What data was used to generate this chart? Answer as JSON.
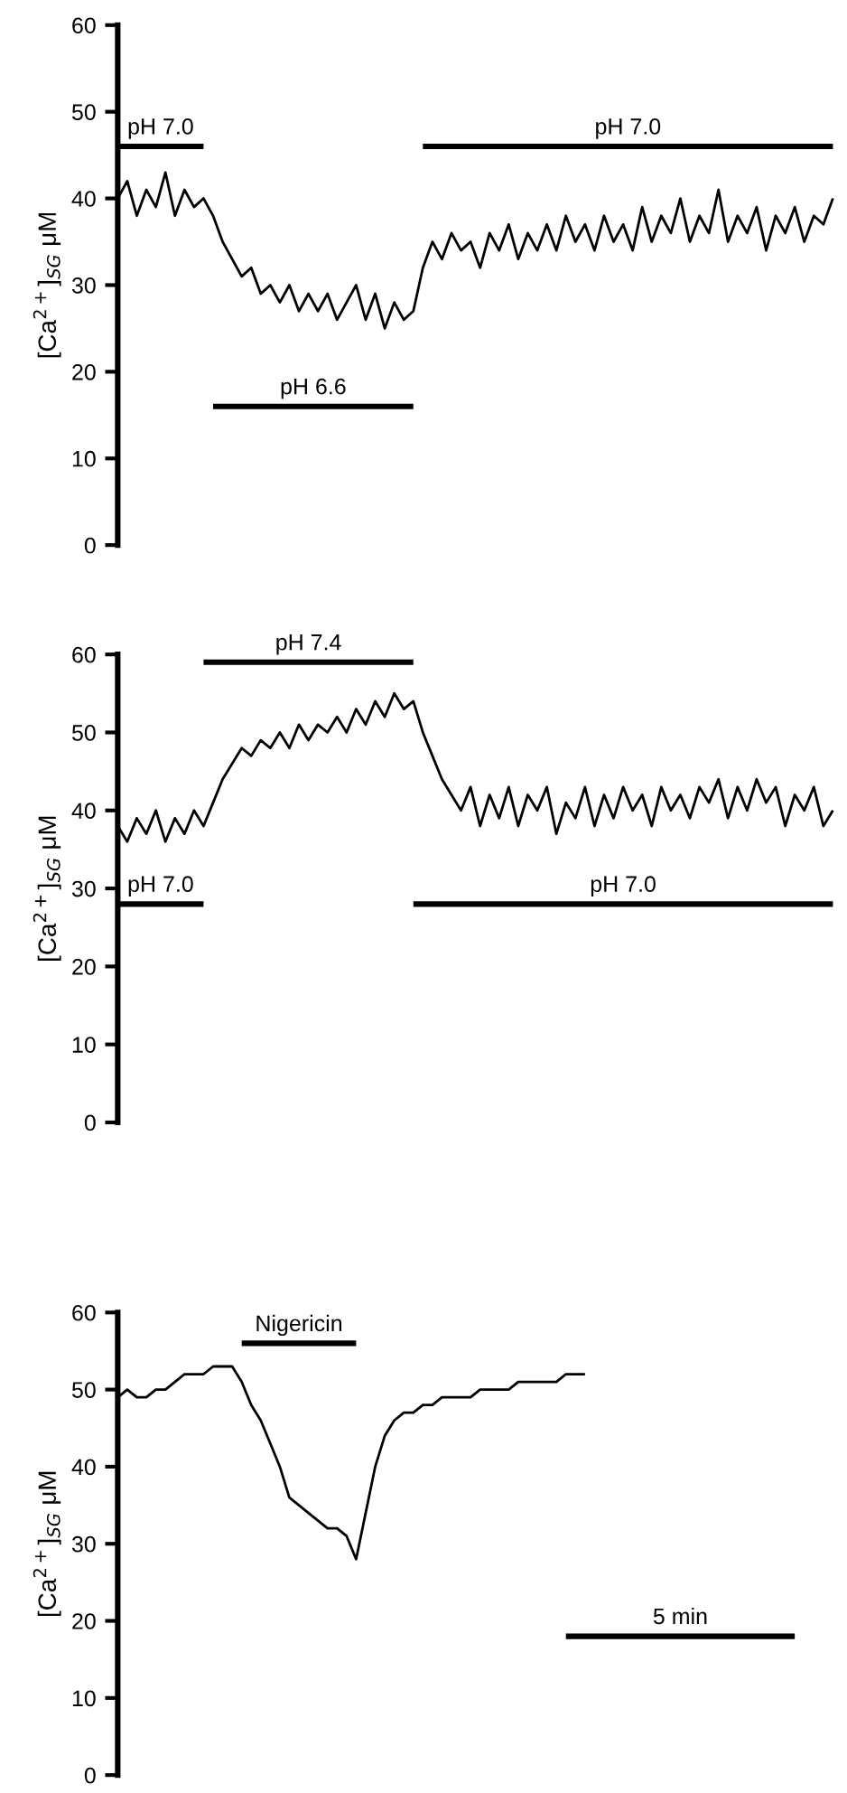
{
  "chart_data": [
    {
      "type": "line",
      "ylabel": "[Ca$^{2+}$]$_{SG}$ μM",
      "ylim": [
        0,
        60
      ],
      "yticks": [
        0,
        10,
        20,
        30,
        40,
        50,
        60
      ],
      "tick_labels": "y",
      "grid": false,
      "categories": [
        null,
        null,
        null,
        null,
        null,
        null,
        null,
        null,
        null,
        null,
        null,
        null,
        null,
        null,
        null,
        null,
        null,
        null,
        null,
        null,
        null,
        null,
        null,
        null,
        null,
        null,
        null,
        null,
        null,
        null,
        null,
        null,
        null,
        null,
        null,
        null,
        null,
        null,
        null,
        null,
        null,
        null,
        null,
        null,
        null,
        null,
        null,
        null,
        null,
        null,
        null,
        null,
        null,
        null,
        null,
        null,
        null,
        null,
        null,
        null,
        null,
        null,
        null,
        null,
        null,
        null,
        null,
        null,
        null,
        null,
        null,
        null,
        null,
        null,
        null,
        null
      ],
      "series": [
        {
          "color": "#000000",
          "values": [
            40,
            42,
            38,
            41,
            39,
            43,
            38,
            41,
            39,
            40,
            38,
            35,
            33,
            31,
            32,
            29,
            30,
            28,
            30,
            27,
            29,
            27,
            29,
            26,
            28,
            30,
            26,
            29,
            25,
            28,
            26,
            27,
            32,
            35,
            33,
            36,
            34,
            35,
            32,
            36,
            34,
            37,
            33,
            36,
            34,
            37,
            34,
            38,
            35,
            37,
            34,
            38,
            35,
            37,
            34,
            39,
            35,
            38,
            36,
            40,
            35,
            38,
            36,
            41,
            35,
            38,
            36,
            39,
            34,
            38,
            36,
            39,
            35,
            38,
            37,
            40
          ]
        },
        {
          "color": "#000000",
          "values": [
            46,
            46,
            46,
            46,
            46,
            46,
            46,
            46,
            46,
            46,
            null,
            null,
            null,
            null,
            null,
            null,
            null,
            null,
            null,
            null,
            null,
            null,
            null,
            null,
            null,
            null,
            null,
            null,
            null,
            null,
            null,
            null,
            null,
            null,
            null,
            null,
            null,
            null,
            null,
            null,
            null,
            null,
            null,
            null,
            null,
            null,
            null,
            null,
            null,
            null,
            null,
            null,
            null,
            null,
            null,
            null,
            null,
            null,
            null,
            null,
            null,
            null,
            null,
            null,
            null,
            null,
            null,
            null,
            null,
            null,
            null,
            null,
            null,
            null,
            null,
            null
          ]
        },
        {
          "color": "#000000",
          "values": [
            null,
            null,
            null,
            null,
            null,
            null,
            null,
            null,
            null,
            null,
            16,
            16,
            16,
            16,
            16,
            16,
            16,
            16,
            16,
            16,
            16,
            16,
            16,
            16,
            16,
            16,
            16,
            16,
            16,
            16,
            16,
            16,
            null,
            null,
            null,
            null,
            null,
            null,
            null,
            null,
            null,
            null,
            null,
            null,
            null,
            null,
            null,
            null,
            null,
            null,
            null,
            null,
            null,
            null,
            null,
            null,
            null,
            null,
            null,
            null,
            null,
            null,
            null,
            null,
            null,
            null,
            null,
            null,
            null,
            null,
            null,
            null,
            null,
            null,
            null,
            null
          ]
        },
        {
          "color": "#000000",
          "values": [
            null,
            null,
            null,
            null,
            null,
            null,
            null,
            null,
            null,
            null,
            null,
            null,
            null,
            null,
            null,
            null,
            null,
            null,
            null,
            null,
            null,
            null,
            null,
            null,
            null,
            null,
            null,
            null,
            null,
            null,
            null,
            null,
            46,
            46,
            46,
            46,
            46,
            46,
            46,
            46,
            46,
            46,
            46,
            46,
            46,
            46,
            46,
            46,
            46,
            46,
            46,
            46,
            46,
            46,
            46,
            46,
            46,
            46,
            46,
            46,
            46,
            46,
            46,
            46,
            46,
            46,
            46,
            46,
            46,
            46,
            46,
            46,
            46,
            46,
            46,
            46
          ]
        }
      ],
      "annotations": [
        "pH 7.0",
        "pH 6.6",
        "pH 7.0"
      ]
    },
    {
      "type": "line",
      "ylabel": "[Ca$^{2+}$]$_{SG}$ μM",
      "ylim": [
        0,
        60
      ],
      "yticks": [
        0,
        10,
        20,
        30,
        40,
        50,
        60
      ],
      "tick_labels": "y",
      "grid": false,
      "categories": [
        null,
        null,
        null,
        null,
        null,
        null,
        null,
        null,
        null,
        null,
        null,
        null,
        null,
        null,
        null,
        null,
        null,
        null,
        null,
        null,
        null,
        null,
        null,
        null,
        null,
        null,
        null,
        null,
        null,
        null,
        null,
        null,
        null,
        null,
        null,
        null,
        null,
        null,
        null,
        null,
        null,
        null,
        null,
        null,
        null,
        null,
        null,
        null,
        null,
        null,
        null,
        null,
        null,
        null,
        null,
        null,
        null,
        null,
        null,
        null,
        null,
        null,
        null,
        null,
        null,
        null,
        null,
        null,
        null,
        null,
        null,
        null,
        null,
        null,
        null,
        null
      ],
      "series": [
        {
          "color": "#000000",
          "values": [
            38,
            36,
            39,
            37,
            40,
            36,
            39,
            37,
            40,
            38,
            41,
            44,
            46,
            48,
            47,
            49,
            48,
            50,
            48,
            51,
            49,
            51,
            50,
            52,
            50,
            53,
            51,
            54,
            52,
            55,
            53,
            54,
            50,
            47,
            44,
            42,
            40,
            43,
            38,
            42,
            39,
            43,
            38,
            42,
            40,
            43,
            37,
            41,
            39,
            43,
            38,
            42,
            39,
            43,
            40,
            42,
            38,
            43,
            40,
            42,
            39,
            43,
            41,
            44,
            39,
            43,
            40,
            44,
            41,
            43,
            38,
            42,
            40,
            43,
            38,
            40
          ]
        },
        {
          "color": "#000000",
          "values": [
            28,
            28,
            28,
            28,
            28,
            28,
            28,
            28,
            28,
            28,
            null,
            null,
            null,
            null,
            null,
            null,
            null,
            null,
            null,
            null,
            null,
            null,
            null,
            null,
            null,
            null,
            null,
            null,
            null,
            null,
            null,
            null,
            null,
            null,
            null,
            null,
            null,
            null,
            null,
            null,
            null,
            null,
            null,
            null,
            null,
            null,
            null,
            null,
            null,
            null,
            null,
            null,
            null,
            null,
            null,
            null,
            null,
            null,
            null,
            null,
            null,
            null,
            null,
            null,
            null,
            null,
            null,
            null,
            null,
            null,
            null,
            null,
            null,
            null,
            null,
            null
          ]
        },
        {
          "color": "#000000",
          "values": [
            null,
            null,
            null,
            null,
            null,
            null,
            null,
            null,
            null,
            59,
            59,
            59,
            59,
            59,
            59,
            59,
            59,
            59,
            59,
            59,
            59,
            59,
            59,
            59,
            59,
            59,
            59,
            59,
            59,
            59,
            59,
            59,
            null,
            null,
            null,
            null,
            null,
            null,
            null,
            null,
            null,
            null,
            null,
            null,
            null,
            null,
            null,
            null,
            null,
            null,
            null,
            null,
            null,
            null,
            null,
            null,
            null,
            null,
            null,
            null,
            null,
            null,
            null,
            null,
            null,
            null,
            null,
            null,
            null,
            null,
            null,
            null,
            null,
            null,
            null,
            null
          ]
        },
        {
          "color": "#000000",
          "values": [
            null,
            null,
            null,
            null,
            null,
            null,
            null,
            null,
            null,
            null,
            null,
            null,
            null,
            null,
            null,
            null,
            null,
            null,
            null,
            null,
            null,
            null,
            null,
            null,
            null,
            null,
            null,
            null,
            null,
            null,
            null,
            28,
            28,
            28,
            28,
            28,
            28,
            28,
            28,
            28,
            28,
            28,
            28,
            28,
            28,
            28,
            28,
            28,
            28,
            28,
            28,
            28,
            28,
            28,
            28,
            28,
            28,
            28,
            28,
            28,
            28,
            28,
            28,
            28,
            28,
            28,
            28,
            28,
            28,
            28,
            28,
            28,
            28,
            28,
            28,
            28
          ]
        }
      ],
      "annotations": [
        "pH 7.0",
        "pH 7.4",
        "pH 7.0"
      ]
    },
    {
      "type": "line",
      "ylabel": "[Ca$^{2+}$]$_{SG}$ μM",
      "ylim": [
        0,
        60
      ],
      "yticks": [
        0,
        10,
        20,
        30,
        40,
        50,
        60
      ],
      "tick_labels": "y",
      "grid": false,
      "categories": [
        null,
        null,
        null,
        null,
        null,
        null,
        null,
        null,
        null,
        null,
        null,
        null,
        null,
        null,
        null,
        null,
        null,
        null,
        null,
        null,
        null,
        null,
        null,
        null,
        null,
        null,
        null,
        null,
        null,
        null,
        null,
        null,
        null,
        null,
        null,
        null,
        null,
        null,
        null,
        null,
        null,
        null,
        null,
        null,
        null,
        null,
        null,
        null,
        null,
        null,
        null,
        null,
        null,
        null,
        null,
        null,
        null,
        null,
        null,
        null,
        null,
        null,
        null,
        null,
        null,
        null,
        null,
        null,
        null,
        null,
        null,
        null,
        null,
        null,
        null,
        null
      ],
      "series": [
        {
          "color": "#000000",
          "values": [
            49,
            50,
            49,
            49,
            50,
            50,
            51,
            52,
            52,
            52,
            53,
            53,
            53,
            51,
            48,
            46,
            43,
            40,
            36,
            35,
            34,
            33,
            32,
            32,
            31,
            28,
            34,
            40,
            44,
            46,
            47,
            47,
            48,
            48,
            49,
            49,
            49,
            49,
            50,
            50,
            50,
            50,
            51,
            51,
            51,
            51,
            51,
            52,
            52,
            52,
            null,
            null,
            null,
            null,
            null,
            null,
            null,
            null,
            null,
            null,
            null,
            null,
            null,
            null,
            null,
            null,
            null,
            null,
            null,
            null,
            null,
            null,
            null,
            null,
            null,
            null
          ]
        },
        {
          "color": "#000000",
          "values": [
            null,
            null,
            null,
            null,
            null,
            null,
            null,
            null,
            null,
            null,
            null,
            null,
            null,
            56,
            56,
            56,
            56,
            56,
            56,
            56,
            56,
            56,
            56,
            56,
            56,
            56,
            null,
            null,
            null,
            null,
            null,
            null,
            null,
            null,
            null,
            null,
            null,
            null,
            null,
            null,
            null,
            null,
            null,
            null,
            null,
            null,
            null,
            null,
            null,
            null,
            null,
            null,
            null,
            null,
            null,
            null,
            null,
            null,
            null,
            null,
            null,
            null,
            null,
            null,
            null,
            null,
            null,
            null,
            null,
            null,
            null,
            null,
            null,
            null,
            null,
            null
          ]
        },
        {
          "color": "#000000",
          "values": [
            null,
            null,
            null,
            null,
            null,
            null,
            null,
            null,
            null,
            null,
            null,
            null,
            null,
            null,
            null,
            null,
            null,
            null,
            null,
            null,
            null,
            null,
            null,
            null,
            null,
            null,
            null,
            null,
            null,
            null,
            null,
            null,
            null,
            null,
            null,
            null,
            null,
            null,
            null,
            null,
            null,
            null,
            null,
            null,
            null,
            null,
            null,
            18,
            18,
            18,
            18,
            18,
            18,
            18,
            18,
            18,
            18,
            18,
            18,
            18,
            18,
            18,
            18,
            18,
            18,
            18,
            18,
            18,
            18,
            18,
            18,
            18,
            null,
            null,
            null,
            null
          ]
        }
      ],
      "annotations": [
        "Nigericin",
        "5 min"
      ]
    }
  ]
}
